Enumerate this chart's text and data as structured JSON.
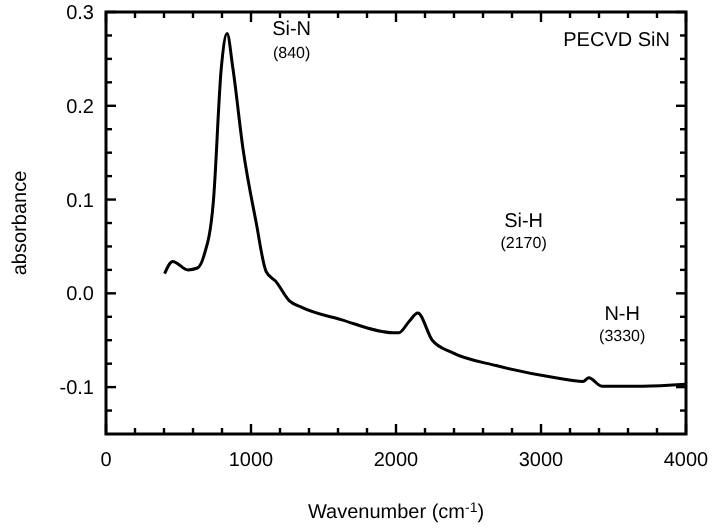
{
  "chart_data": {
    "type": "line",
    "title": "PECVD SiN",
    "xlabel": "Wavenumber (cm$^{-1}$)",
    "ylabel": "absorbance",
    "x": [
      404,
      460,
      565,
      630,
      675,
      740,
      795,
      835,
      875,
      945,
      1035,
      1105,
      1170,
      1265,
      1350,
      1620,
      1980,
      2020,
      2090,
      2150,
      2250,
      2385,
      2690,
      3100,
      3290,
      3330,
      3420,
      3700,
      4000
    ],
    "series": [
      {
        "color": "#000000",
        "values": [
          0.021,
          0.034,
          0.025,
          0.027,
          0.04,
          0.097,
          0.24,
          0.277,
          0.24,
          0.154,
          0.076,
          0.023,
          0.013,
          -0.008,
          -0.015,
          -0.028,
          -0.042,
          -0.042,
          -0.03,
          -0.021,
          -0.05,
          -0.063,
          -0.077,
          -0.09,
          -0.094,
          -0.09,
          -0.099,
          -0.099,
          -0.097
        ]
      }
    ],
    "xlim": [
      0,
      4000
    ],
    "ylim": [
      -0.15,
      0.3
    ],
    "xticks": [
      0,
      {
        "value": 200,
        "label": null
      },
      {
        "value": 400,
        "label": null
      },
      {
        "value": 600,
        "label": null
      },
      {
        "value": 800,
        "label": null
      },
      1000,
      {
        "value": 1200,
        "label": null
      },
      {
        "value": 1400,
        "label": null
      },
      {
        "value": 1600,
        "label": null
      },
      {
        "value": 1800,
        "label": null
      },
      2000,
      {
        "value": 2200,
        "label": null
      },
      {
        "value": 2400,
        "label": null
      },
      {
        "value": 2600,
        "label": null
      },
      {
        "value": 2800,
        "label": null
      },
      3000,
      {
        "value": 3200,
        "label": null
      },
      {
        "value": 3400,
        "label": null
      },
      {
        "value": 3600,
        "label": null
      },
      {
        "value": 3800,
        "label": null
      },
      4000
    ],
    "yticks": [
      {
        "value": -0.125,
        "label": null
      },
      {
        "value": -0.1,
        "label": "-0.1"
      },
      {
        "value": -0.075,
        "label": null
      },
      {
        "value": -0.05,
        "label": null
      },
      {
        "value": -0.025,
        "label": null
      },
      {
        "value": 0,
        "label": "0.0"
      },
      {
        "value": 0.025,
        "label": null
      },
      {
        "value": 0.05,
        "label": null
      },
      {
        "value": 0.075,
        "label": null
      },
      {
        "value": 0.1,
        "label": "0.1"
      },
      {
        "value": 0.125,
        "label": null
      },
      {
        "value": 0.15,
        "label": null
      },
      {
        "value": 0.175,
        "label": null
      },
      {
        "value": 0.2,
        "label": "0.2"
      },
      {
        "value": 0.225,
        "label": null
      },
      {
        "value": 0.25,
        "label": null
      },
      {
        "value": 0.275,
        "label": null
      },
      {
        "value": 0.3,
        "label": "0.3"
      }
    ],
    "grid": false,
    "marker": "none",
    "line_style": "solid",
    "annotations": [
      "Si-N",
      "(840)",
      "Si-H",
      "(2170)",
      "N-H",
      "(3330)"
    ]
  }
}
